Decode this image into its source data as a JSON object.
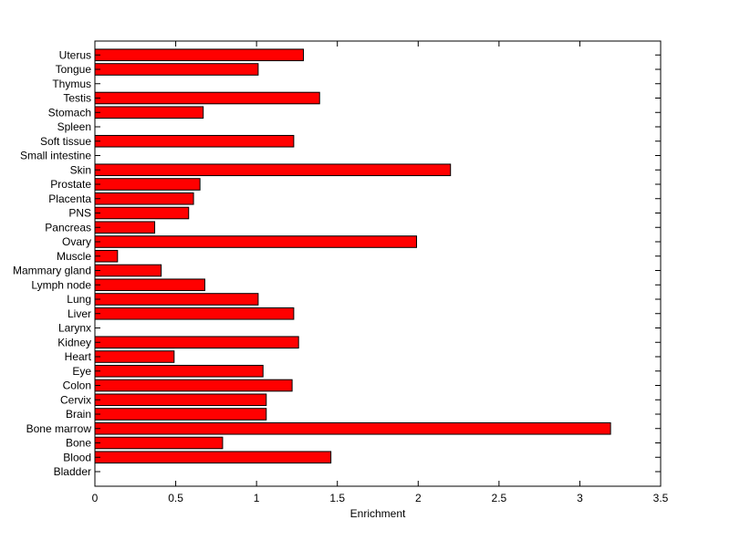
{
  "chart_data": {
    "type": "bar",
    "orientation": "horizontal",
    "title": "",
    "xlabel": "Enrichment",
    "ylabel": "",
    "xlim": [
      0,
      3.5
    ],
    "xticks": [
      "0",
      "0.5",
      "1",
      "1.5",
      "2",
      "2.5",
      "3",
      "3.5"
    ],
    "grid": false,
    "legend": "none",
    "bar_color": "#ff0000",
    "bar_edge_color": "#000000",
    "categories": [
      "Bladder",
      "Blood",
      "Bone",
      "Bone marrow",
      "Brain",
      "Cervix",
      "Colon",
      "Eye",
      "Heart",
      "Kidney",
      "Larynx",
      "Liver",
      "Lung",
      "Lymph node",
      "Mammary gland",
      "Muscle",
      "Ovary",
      "Pancreas",
      "PNS",
      "Placenta",
      "Prostate",
      "Skin",
      "Small intestine",
      "Soft tissue",
      "Spleen",
      "Stomach",
      "Testis",
      "Thymus",
      "Tongue",
      "Uterus"
    ],
    "values": [
      0,
      1.46,
      0.79,
      3.19,
      1.06,
      1.06,
      1.22,
      1.04,
      0.49,
      1.26,
      0,
      1.23,
      1.01,
      0.68,
      0.41,
      0.14,
      1.99,
      0.37,
      0.58,
      0.61,
      0.65,
      2.2,
      0,
      1.23,
      0,
      0.67,
      1.39,
      0,
      1.01,
      1.29
    ]
  }
}
